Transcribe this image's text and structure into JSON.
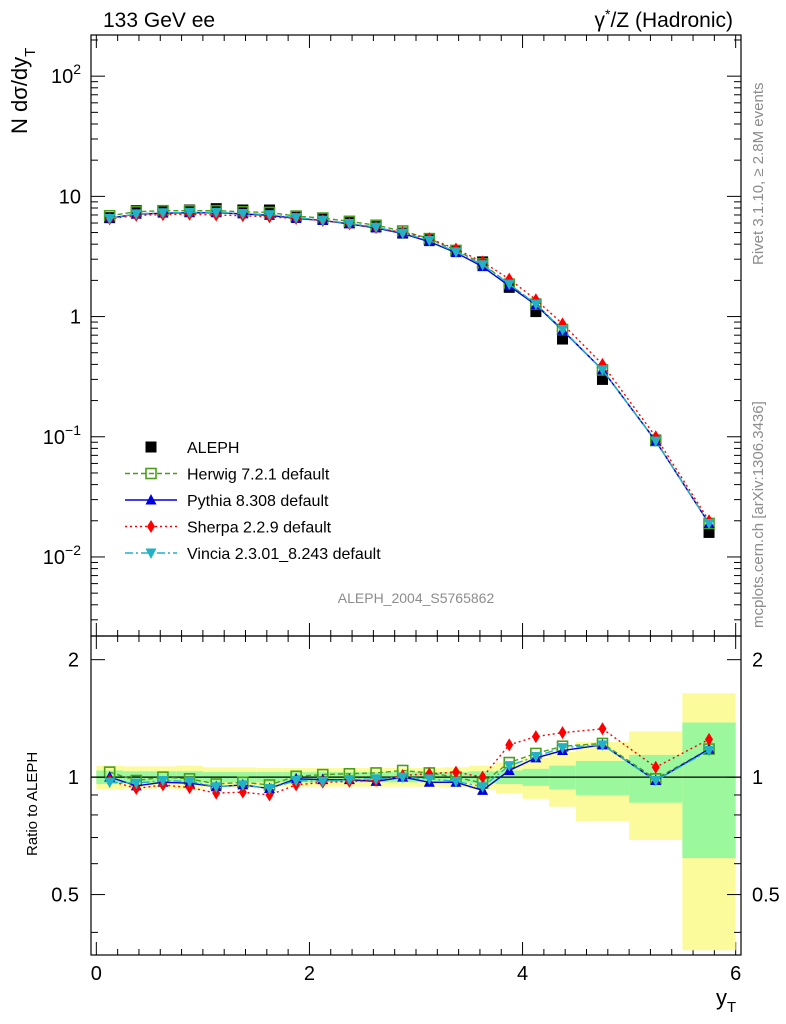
{
  "header": {
    "energy_label": "133 GeV ee",
    "process_label_prefix": "γ",
    "process_label_sup": "*",
    "process_label_suffix": "/Z (Hadronic)"
  },
  "side_labels": {
    "rivet": "Rivet 3.1.10, ≥ 2.8M events",
    "mcplots": "mcplots.cern.ch [arXiv:1306.3436]"
  },
  "analysis_id": "ALEPH_2004_S5765862",
  "colors": {
    "ALEPH": "#000000",
    "Herwig": "#4a9e1b",
    "Pythia": "#0000dd",
    "Sherpa": "#ff0000",
    "Vincia": "#22b2c6",
    "band_inner": "#9cf89c",
    "band_outer": "#fbfb9c"
  },
  "chart_data": [
    {
      "type": "scatter",
      "panel": "main",
      "ylabel_main": "N dσ/dy",
      "ylabel_sub": "T",
      "yscale": "log",
      "ylim": [
        0.0022,
        220
      ],
      "xlim": [
        -0.05,
        6.05
      ],
      "yticks": [
        {
          "value": 100,
          "base": "10",
          "exp": "2"
        },
        {
          "value": 10,
          "base": "10",
          "exp": ""
        },
        {
          "value": 1,
          "base": "1",
          "exp": ""
        },
        {
          "value": 0.1,
          "base": "10",
          "exp": "−1"
        },
        {
          "value": 0.01,
          "base": "10",
          "exp": "−2"
        }
      ],
      "x": [
        0.125,
        0.375,
        0.625,
        0.875,
        1.125,
        1.375,
        1.625,
        1.875,
        2.125,
        2.375,
        2.625,
        2.875,
        3.125,
        3.375,
        3.625,
        3.875,
        4.125,
        4.375,
        4.75,
        5.25,
        5.75
      ],
      "series": [
        {
          "name": "ALEPH",
          "marker": "square-filled",
          "values": [
            6.65,
            7.6,
            7.6,
            7.7,
            7.9,
            7.7,
            7.7,
            6.8,
            6.5,
            6.05,
            5.6,
            4.95,
            4.35,
            3.55,
            2.85,
            1.75,
            1.1,
            0.65,
            0.3,
            0.094,
            0.016
          ]
        },
        {
          "name": "Herwig 7.2.1 default",
          "marker": "square-open",
          "dash": "5,3",
          "values": [
            6.9,
            7.45,
            7.6,
            7.6,
            7.6,
            7.45,
            7.35,
            6.85,
            6.6,
            6.2,
            5.75,
            5.15,
            4.45,
            3.55,
            2.75,
            1.86,
            1.27,
            0.78,
            0.36,
            0.093,
            0.019
          ]
        },
        {
          "name": "Pythia 8.308 default",
          "marker": "triangle-up",
          "dash": "",
          "values": [
            6.6,
            7.1,
            7.25,
            7.3,
            7.3,
            7.15,
            6.95,
            6.55,
            6.3,
            5.9,
            5.45,
            4.9,
            4.2,
            3.4,
            2.6,
            1.8,
            1.25,
            0.77,
            0.36,
            0.092,
            0.019
          ]
        },
        {
          "name": "Sherpa 2.2.9 default",
          "marker": "diamond",
          "dash": "2,3",
          "values": [
            6.5,
            6.95,
            7.05,
            7.1,
            7.0,
            6.9,
            6.75,
            6.55,
            6.3,
            5.9,
            5.5,
            5.0,
            4.45,
            3.65,
            2.85,
            2.05,
            1.38,
            0.87,
            0.4,
            0.1,
            0.02
          ]
        },
        {
          "name": "Vincia 2.3.01_8.243 default",
          "marker": "triangle-down",
          "dash": "8,3,2,3",
          "values": [
            6.55,
            7.15,
            7.3,
            7.35,
            7.35,
            7.2,
            7.05,
            6.65,
            6.35,
            5.95,
            5.55,
            4.95,
            4.3,
            3.45,
            2.7,
            1.86,
            1.27,
            0.78,
            0.36,
            0.092,
            0.019
          ]
        }
      ]
    },
    {
      "type": "scatter",
      "panel": "ratio",
      "ylabel": "Ratio to ALEPH",
      "xlabel_main": "y",
      "xlabel_sub": "T",
      "xlim": [
        -0.05,
        6.05
      ],
      "ylim": [
        0.35,
        2.3
      ],
      "xticks": [
        "0",
        "2",
        "4",
        "6"
      ],
      "yticks": [
        "0.5",
        "1",
        "2"
      ],
      "bins": [
        [
          0,
          0.25
        ],
        [
          0.25,
          0.5
        ],
        [
          0.5,
          0.75
        ],
        [
          0.75,
          1.0
        ],
        [
          1.0,
          1.25
        ],
        [
          1.25,
          1.5
        ],
        [
          1.5,
          1.75
        ],
        [
          1.75,
          2.0
        ],
        [
          2.0,
          2.25
        ],
        [
          2.25,
          2.5
        ],
        [
          2.5,
          2.75
        ],
        [
          2.75,
          3.0
        ],
        [
          3.0,
          3.25
        ],
        [
          3.25,
          3.5
        ],
        [
          3.5,
          3.75
        ],
        [
          3.75,
          4.0
        ],
        [
          4.0,
          4.25
        ],
        [
          4.25,
          4.5
        ],
        [
          4.5,
          5.0
        ],
        [
          5.0,
          5.5
        ],
        [
          5.5,
          6.0
        ]
      ],
      "band_inner_halfwidth": [
        0.04,
        0.035,
        0.035,
        0.035,
        0.03,
        0.03,
        0.03,
        0.03,
        0.03,
        0.03,
        0.03,
        0.03,
        0.03,
        0.03,
        0.035,
        0.04,
        0.05,
        0.07,
        0.1,
        0.14,
        0.38
      ],
      "band_outer_halfwidth": [
        0.07,
        0.065,
        0.065,
        0.07,
        0.06,
        0.06,
        0.055,
        0.055,
        0.055,
        0.055,
        0.055,
        0.055,
        0.055,
        0.06,
        0.07,
        0.09,
        0.12,
        0.16,
        0.23,
        0.31,
        0.64
      ],
      "x": [
        0.125,
        0.375,
        0.625,
        0.875,
        1.125,
        1.375,
        1.625,
        1.875,
        2.125,
        2.375,
        2.625,
        2.875,
        3.125,
        3.375,
        3.625,
        3.875,
        4.125,
        4.375,
        4.75,
        5.25,
        5.75
      ],
      "series": [
        {
          "name": "Herwig 7.2.1 default",
          "marker": "square-open",
          "dash": "5,3",
          "values": [
            1.03,
            0.98,
            1.0,
            0.99,
            0.96,
            0.97,
            0.955,
            1.005,
            1.015,
            1.02,
            1.025,
            1.04,
            1.025,
            1.0,
            0.965,
            1.09,
            1.15,
            1.2,
            1.22,
            0.99,
            1.18
          ]
        },
        {
          "name": "Pythia 8.308 default",
          "marker": "triangle-up",
          "dash": "",
          "values": [
            1.0,
            0.95,
            0.97,
            0.965,
            0.945,
            0.955,
            0.935,
            0.99,
            0.985,
            0.985,
            0.975,
            1.0,
            0.97,
            0.97,
            0.925,
            1.04,
            1.12,
            1.17,
            1.21,
            0.98,
            1.18
          ]
        },
        {
          "name": "Sherpa 2.2.9 default",
          "marker": "diamond",
          "dash": "2,3",
          "values": [
            0.98,
            0.935,
            0.955,
            0.94,
            0.91,
            0.915,
            0.9,
            0.955,
            0.97,
            0.975,
            0.98,
            1.01,
            1.02,
            1.03,
            1.0,
            1.21,
            1.27,
            1.3,
            1.33,
            1.06,
            1.25
          ]
        },
        {
          "name": "Vincia 2.3.01_8.243 default",
          "marker": "triangle-down",
          "dash": "8,3,2,3",
          "values": [
            0.97,
            0.965,
            0.98,
            0.975,
            0.945,
            0.955,
            0.935,
            0.98,
            0.975,
            0.985,
            0.99,
            1.0,
            0.99,
            0.975,
            0.945,
            1.07,
            1.13,
            1.19,
            1.21,
            0.98,
            1.17
          ]
        }
      ]
    }
  ]
}
